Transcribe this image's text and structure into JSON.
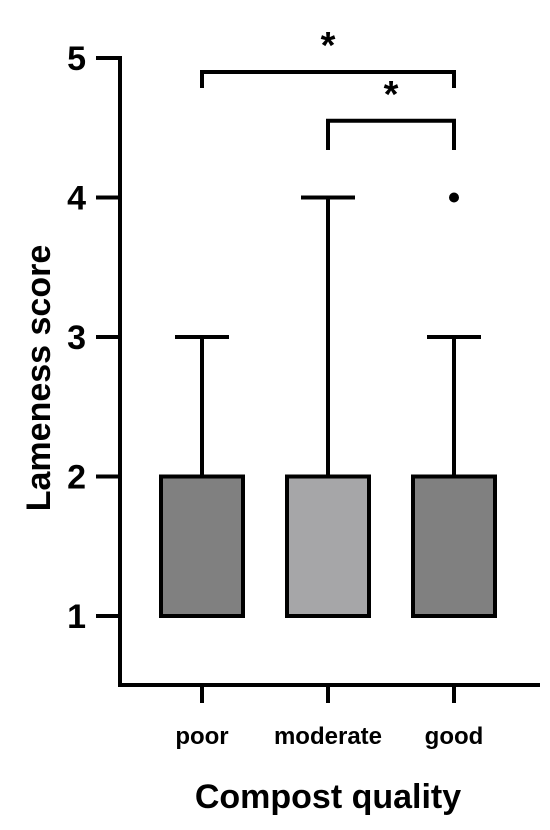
{
  "chart_data": {
    "type": "box",
    "title": "",
    "xlabel": "Compost quality",
    "ylabel": "Lameness score",
    "categories": [
      "poor",
      "moderate",
      "good"
    ],
    "ylim": [
      0.5,
      5
    ],
    "yticks": [
      1,
      2,
      3,
      4,
      5
    ],
    "boxes": [
      {
        "category": "poor",
        "min": 1,
        "q1": 1,
        "median": 1,
        "q3": 2,
        "max": 3,
        "outliers": [],
        "color": "#808080"
      },
      {
        "category": "moderate",
        "min": 1,
        "q1": 1,
        "median": 1,
        "q3": 2,
        "max": 4,
        "outliers": [],
        "color": "#a6a6a8"
      },
      {
        "category": "good",
        "min": 1,
        "q1": 1,
        "median": 1,
        "q3": 2,
        "max": 3,
        "outliers": [
          4
        ],
        "color": "#808080"
      }
    ],
    "significance": [
      {
        "from": "poor",
        "to": "good",
        "y": 4.9,
        "label": "*"
      },
      {
        "from": "moderate",
        "to": "good",
        "y": 4.55,
        "label": "*"
      }
    ],
    "grid": false,
    "legend": "none"
  }
}
